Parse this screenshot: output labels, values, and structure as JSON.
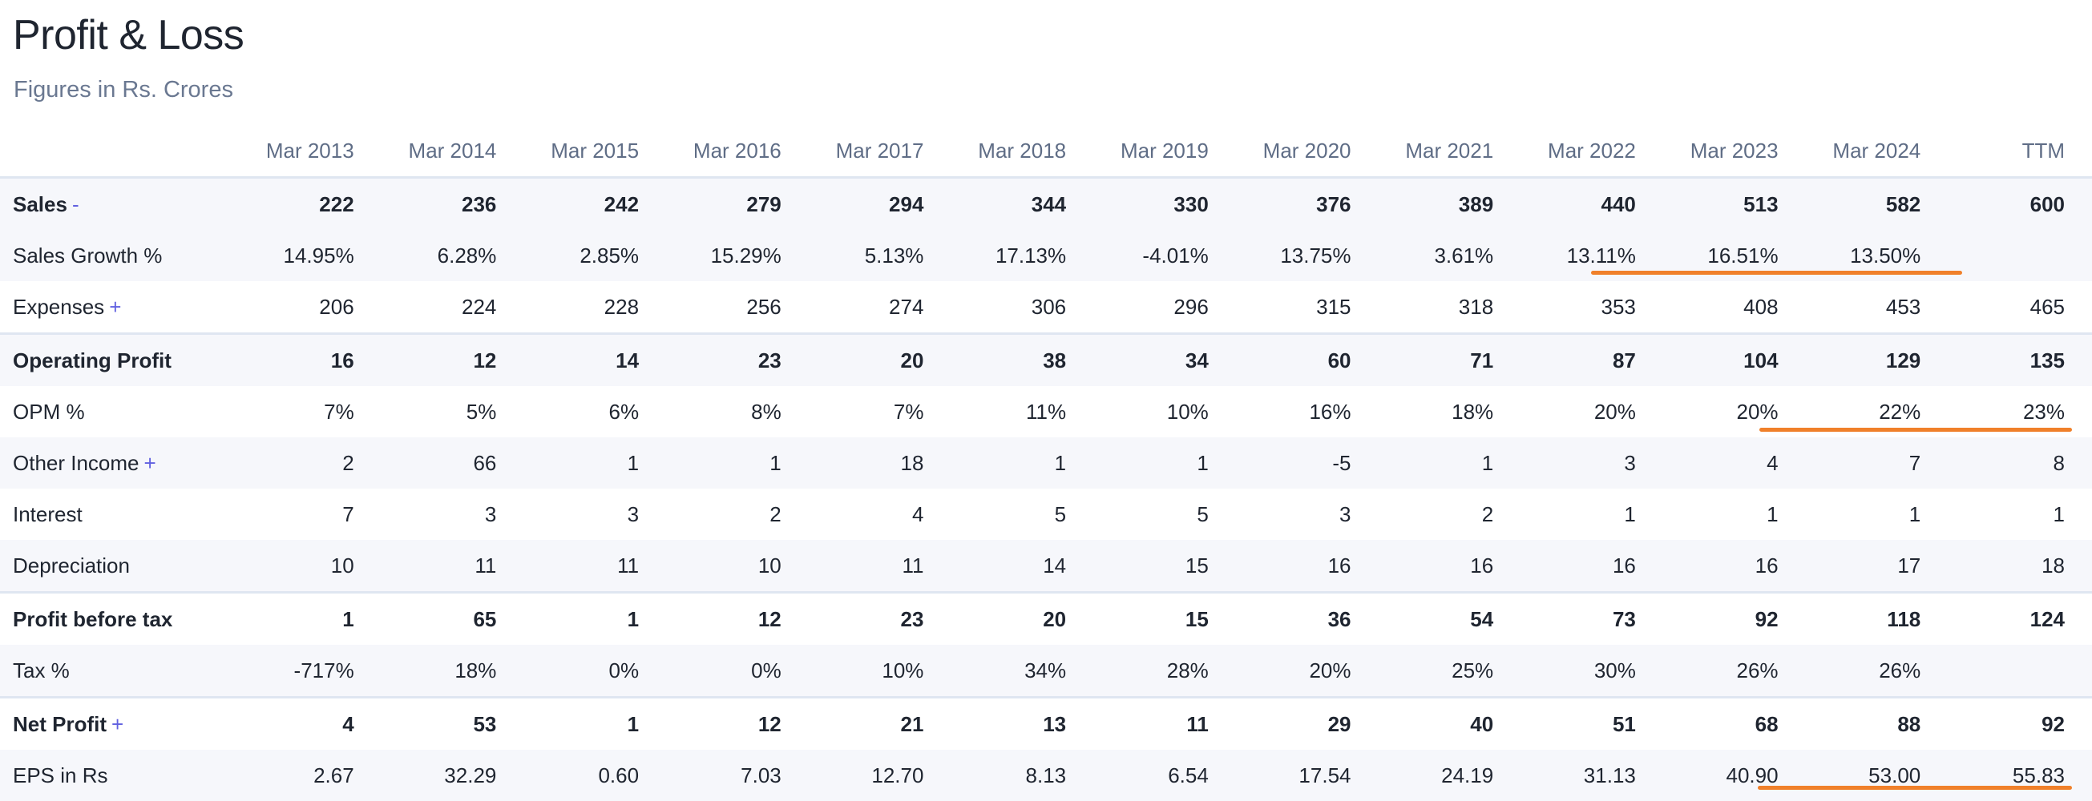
{
  "page": {
    "title": "Profit & Loss",
    "subtitle": "Figures in Rs. Crores"
  },
  "table": {
    "columns": [
      "Mar 2013",
      "Mar 2014",
      "Mar 2015",
      "Mar 2016",
      "Mar 2017",
      "Mar 2018",
      "Mar 2019",
      "Mar 2020",
      "Mar 2021",
      "Mar 2022",
      "Mar 2023",
      "Mar 2024",
      "TTM"
    ],
    "rows": [
      {
        "label": "Sales",
        "toggle": "-",
        "values": [
          "222",
          "236",
          "242",
          "279",
          "294",
          "344",
          "330",
          "376",
          "389",
          "440",
          "513",
          "582",
          "600"
        ]
      },
      {
        "label": "Sales Growth %",
        "values": [
          "14.95%",
          "6.28%",
          "2.85%",
          "15.29%",
          "5.13%",
          "17.13%",
          "-4.01%",
          "13.75%",
          "3.61%",
          "13.11%",
          "16.51%",
          "13.50%",
          ""
        ]
      },
      {
        "label": "Expenses",
        "toggle": "+",
        "values": [
          "206",
          "224",
          "228",
          "256",
          "274",
          "306",
          "296",
          "315",
          "318",
          "353",
          "408",
          "453",
          "465"
        ]
      },
      {
        "label": "Operating Profit",
        "values": [
          "16",
          "12",
          "14",
          "23",
          "20",
          "38",
          "34",
          "60",
          "71",
          "87",
          "104",
          "129",
          "135"
        ]
      },
      {
        "label": "OPM %",
        "values": [
          "7%",
          "5%",
          "6%",
          "8%",
          "7%",
          "11%",
          "10%",
          "16%",
          "18%",
          "20%",
          "20%",
          "22%",
          "23%"
        ]
      },
      {
        "label": "Other Income",
        "toggle": "+",
        "values": [
          "2",
          "66",
          "1",
          "1",
          "18",
          "1",
          "1",
          "-5",
          "1",
          "3",
          "4",
          "7",
          "8"
        ]
      },
      {
        "label": "Interest",
        "values": [
          "7",
          "3",
          "3",
          "2",
          "4",
          "5",
          "5",
          "3",
          "2",
          "1",
          "1",
          "1",
          "1"
        ]
      },
      {
        "label": "Depreciation",
        "values": [
          "10",
          "11",
          "11",
          "10",
          "11",
          "14",
          "15",
          "16",
          "16",
          "16",
          "16",
          "17",
          "18"
        ]
      },
      {
        "label": "Profit before tax",
        "values": [
          "1",
          "65",
          "1",
          "12",
          "23",
          "20",
          "15",
          "36",
          "54",
          "73",
          "92",
          "118",
          "124"
        ]
      },
      {
        "label": "Tax %",
        "values": [
          "-717%",
          "18%",
          "0%",
          "0%",
          "10%",
          "34%",
          "28%",
          "20%",
          "25%",
          "30%",
          "26%",
          "26%",
          ""
        ]
      },
      {
        "label": "Net Profit",
        "toggle": "+",
        "values": [
          "4",
          "53",
          "1",
          "12",
          "21",
          "13",
          "11",
          "29",
          "40",
          "51",
          "68",
          "88",
          "92"
        ]
      },
      {
        "label": "EPS in Rs",
        "values": [
          "2.67",
          "32.29",
          "0.60",
          "7.03",
          "12.70",
          "8.13",
          "6.54",
          "17.54",
          "24.19",
          "31.13",
          "40.90",
          "53.00",
          "55.83"
        ]
      }
    ]
  },
  "annotations": {
    "highlight_color": "#f0802a"
  }
}
